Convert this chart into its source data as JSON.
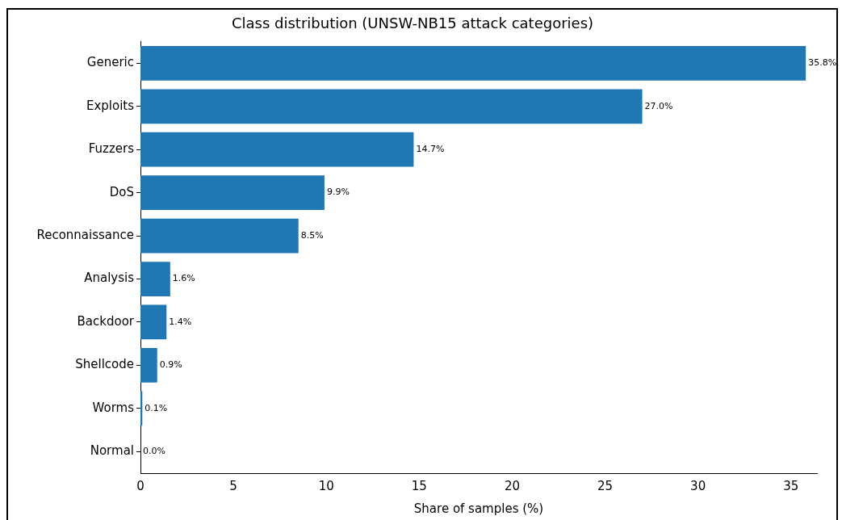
{
  "chart_data": {
    "type": "bar",
    "orientation": "horizontal",
    "title": "Class distribution (UNSW-NB15 attack categories)",
    "xlabel": "Share of samples (%)",
    "categories": [
      "Generic",
      "Exploits",
      "Fuzzers",
      "DoS",
      "Reconnaissance",
      "Analysis",
      "Backdoor",
      "Shellcode",
      "Worms",
      "Normal"
    ],
    "values": [
      35.8,
      27.0,
      14.7,
      9.9,
      8.5,
      1.6,
      1.4,
      0.9,
      0.1,
      0.0
    ],
    "value_labels": [
      "35.8%",
      "27.0%",
      "14.7%",
      "9.9%",
      "8.5%",
      "1.6%",
      "1.4%",
      "0.9%",
      "0.1%",
      "0.0%"
    ],
    "color": "#1f77b4",
    "xlim": [
      0,
      36.4
    ],
    "xticks": [
      0,
      5,
      10,
      15,
      20,
      25,
      30,
      35
    ],
    "grid": false
  }
}
